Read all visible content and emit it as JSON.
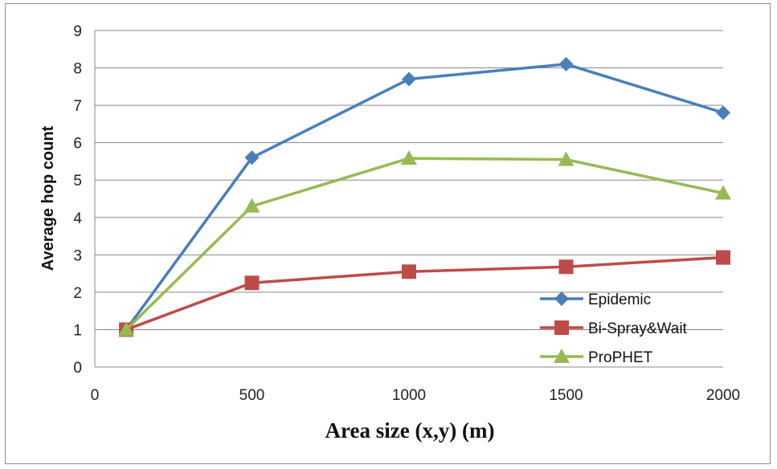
{
  "chart_data": {
    "type": "line",
    "title": "",
    "xlabel": "Area size (x,y) (m)",
    "ylabel": "Average hop count",
    "x": [
      100,
      500,
      1000,
      1500,
      2000
    ],
    "xlim": [
      0,
      2000
    ],
    "ylim": [
      0,
      9
    ],
    "xticks": [
      "0",
      "500",
      "1000",
      "1500",
      "2000"
    ],
    "xtick_values": [
      0,
      500,
      1000,
      1500,
      2000
    ],
    "yticks": [
      "0",
      "1",
      "2",
      "3",
      "4",
      "5",
      "6",
      "7",
      "8",
      "9"
    ],
    "ytick_values": [
      0,
      1,
      2,
      3,
      4,
      5,
      6,
      7,
      8,
      9
    ],
    "grid": true,
    "legend_position": "bottom-right",
    "series": [
      {
        "name": "Epidemic",
        "values": [
          1.0,
          5.6,
          7.7,
          8.1,
          6.8
        ],
        "color": "#4a7ebb",
        "marker": "diamond"
      },
      {
        "name": "Bi-Spray&Wait",
        "values": [
          1.0,
          2.25,
          2.55,
          2.68,
          2.93
        ],
        "color": "#be4b48",
        "marker": "square"
      },
      {
        "name": "ProPHET",
        "values": [
          1.0,
          4.3,
          5.58,
          5.55,
          4.65
        ],
        "color": "#98b954",
        "marker": "triangle"
      }
    ]
  }
}
